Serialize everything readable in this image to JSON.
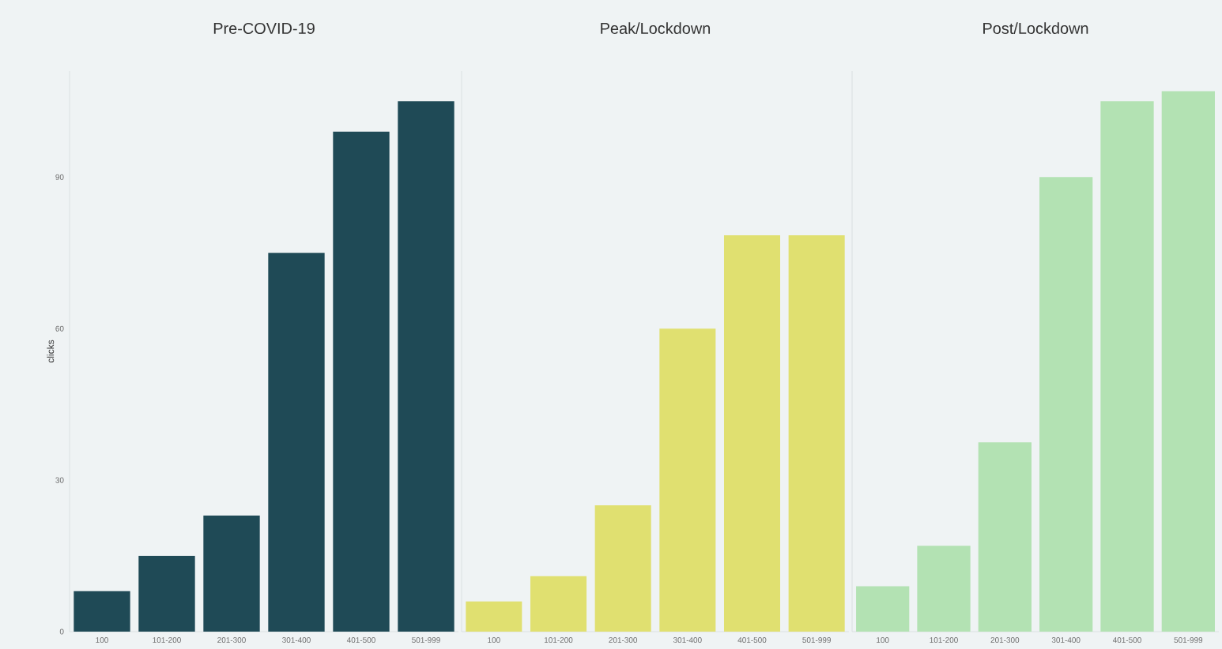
{
  "chart_data": [
    {
      "type": "bar",
      "title": "Pre-COVID-19",
      "ylabel": "clicks",
      "categories": [
        "100",
        "101-200",
        "201-300",
        "301-400",
        "401-500",
        "501-999"
      ],
      "values": [
        8,
        15,
        23,
        75,
        99,
        105
      ],
      "color": "#1f4a56",
      "ylim": [
        0,
        111
      ],
      "yticks": [
        0,
        30,
        60,
        90
      ],
      "grid": false
    },
    {
      "type": "bar",
      "title": "Peak/Lockdown",
      "categories": [
        "100",
        "101-200",
        "201-300",
        "301-400",
        "401-500",
        "501-999"
      ],
      "values": [
        6,
        11,
        25,
        60,
        78.5,
        78.5
      ],
      "color": "#e0e070",
      "ylim": [
        0,
        111
      ],
      "yticks": [
        0,
        30,
        60,
        90
      ],
      "tick_labels": "x",
      "grid": false
    },
    {
      "type": "bar",
      "title": "Post/Lockdown",
      "categories": [
        "100",
        "101-200",
        "201-300",
        "301-400",
        "401-500",
        "501-999"
      ],
      "values": [
        9,
        17,
        37.5,
        90,
        105,
        107
      ],
      "color": "#b3e2b3",
      "ylim": [
        0,
        111
      ],
      "yticks": [
        0,
        30,
        60,
        90
      ],
      "tick_labels": "x",
      "grid": false
    }
  ]
}
